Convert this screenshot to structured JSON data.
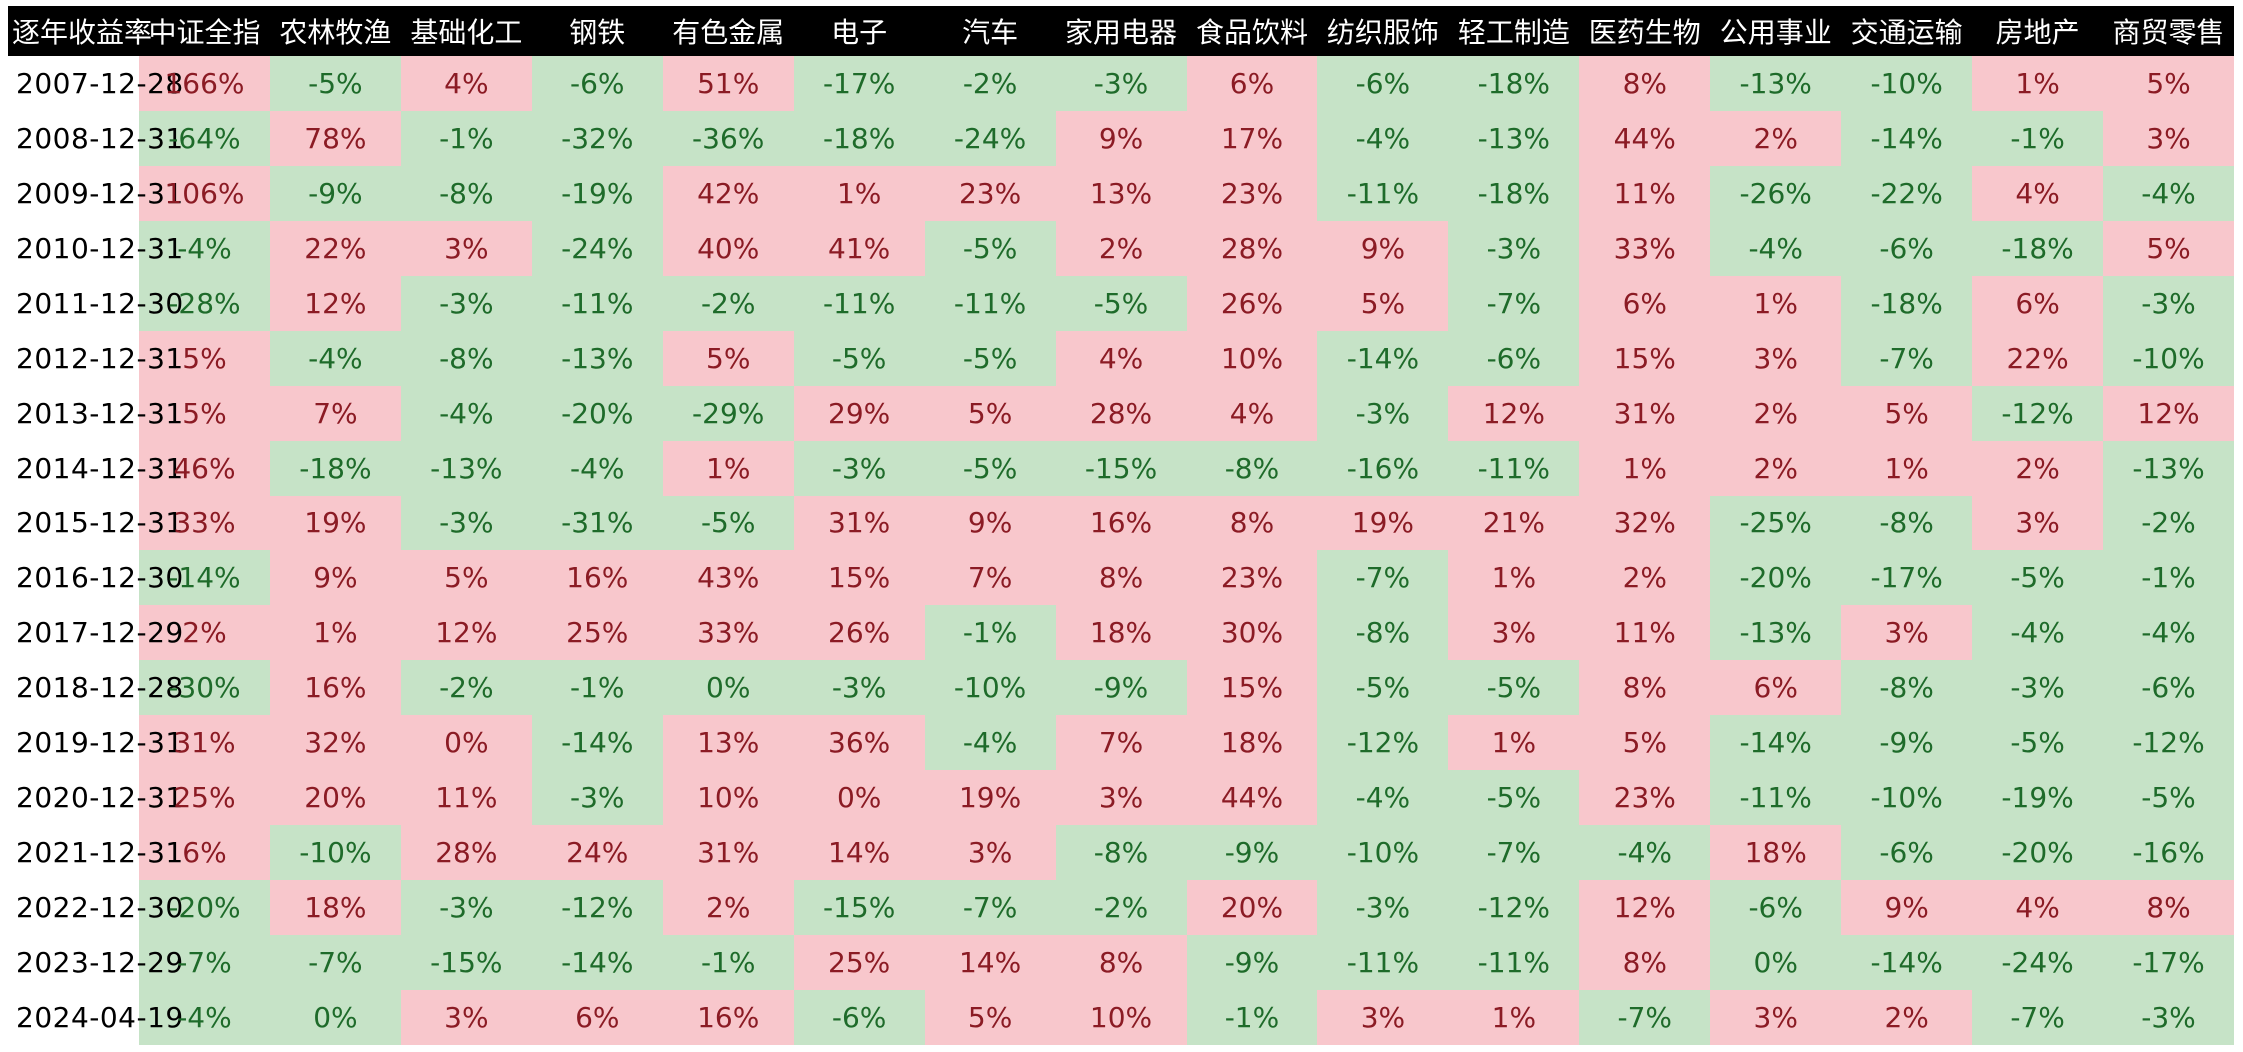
{
  "chart_data": {
    "type": "table",
    "corner_label": "逐年收益率",
    "columns": [
      "中证全指",
      "农林牧渔",
      "基础化工",
      "钢铁",
      "有色金属",
      "电子",
      "汽车",
      "家用电器",
      "食品饮料",
      "纺织服饰",
      "轻工制造",
      "医药生物",
      "公用事业",
      "交通运输",
      "房地产",
      "商贸零售"
    ],
    "rows": [
      {
        "date": "2007-12-28",
        "values": [
          166,
          -5,
          4,
          -6,
          51,
          -17,
          -2,
          -3,
          6,
          -6,
          -18,
          8,
          -13,
          -10,
          1,
          5
        ]
      },
      {
        "date": "2008-12-31",
        "values": [
          -64,
          78,
          -1,
          -32,
          -36,
          -18,
          -24,
          9,
          17,
          -4,
          -13,
          44,
          2,
          -14,
          -1,
          3
        ]
      },
      {
        "date": "2009-12-31",
        "values": [
          106,
          -9,
          -8,
          -19,
          42,
          1,
          23,
          13,
          23,
          -11,
          -18,
          11,
          -26,
          -22,
          4,
          -4
        ]
      },
      {
        "date": "2010-12-31",
        "values": [
          -4,
          22,
          3,
          -24,
          40,
          41,
          -5,
          2,
          28,
          9,
          -3,
          33,
          -4,
          -6,
          -18,
          5
        ]
      },
      {
        "date": "2011-12-30",
        "values": [
          -28,
          12,
          -3,
          -11,
          -2,
          -11,
          -11,
          -5,
          26,
          5,
          -7,
          6,
          1,
          -18,
          6,
          -3
        ]
      },
      {
        "date": "2012-12-31",
        "values": [
          5,
          -4,
          -8,
          -13,
          5,
          -5,
          -5,
          4,
          10,
          -14,
          -6,
          15,
          3,
          -7,
          22,
          -10
        ]
      },
      {
        "date": "2013-12-31",
        "values": [
          5,
          7,
          -4,
          -20,
          -29,
          29,
          5,
          28,
          4,
          -3,
          12,
          31,
          2,
          5,
          -12,
          12
        ]
      },
      {
        "date": "2014-12-31",
        "values": [
          46,
          -18,
          -13,
          -4,
          1,
          -3,
          -5,
          -15,
          -8,
          -16,
          -11,
          1,
          2,
          1,
          2,
          -13
        ]
      },
      {
        "date": "2015-12-31",
        "values": [
          33,
          19,
          -3,
          -31,
          -5,
          31,
          9,
          16,
          8,
          19,
          21,
          32,
          -25,
          -8,
          3,
          -2
        ]
      },
      {
        "date": "2016-12-30",
        "values": [
          -14,
          9,
          5,
          16,
          43,
          15,
          7,
          8,
          23,
          -7,
          1,
          2,
          -20,
          -17,
          -5,
          -1
        ]
      },
      {
        "date": "2017-12-29",
        "values": [
          2,
          1,
          12,
          25,
          33,
          26,
          -1,
          18,
          30,
          -8,
          3,
          11,
          -13,
          3,
          -4,
          -4
        ]
      },
      {
        "date": "2018-12-28",
        "values": [
          -30,
          16,
          -2,
          -1,
          0,
          -3,
          -10,
          -9,
          15,
          -5,
          -5,
          8,
          6,
          -8,
          -3,
          -6
        ]
      },
      {
        "date": "2019-12-31",
        "values": [
          31,
          32,
          0,
          -14,
          13,
          36,
          -4,
          7,
          18,
          -12,
          1,
          5,
          -14,
          -9,
          -5,
          -12
        ]
      },
      {
        "date": "2020-12-31",
        "values": [
          25,
          20,
          11,
          -3,
          10,
          0,
          19,
          3,
          44,
          -4,
          -5,
          23,
          -11,
          -10,
          -19,
          -5
        ]
      },
      {
        "date": "2021-12-31",
        "values": [
          6,
          -10,
          28,
          24,
          31,
          14,
          3,
          -8,
          -9,
          -10,
          -7,
          -4,
          18,
          -6,
          -20,
          -16
        ]
      },
      {
        "date": "2022-12-30",
        "values": [
          -20,
          18,
          -3,
          -12,
          2,
          -15,
          -7,
          -2,
          20,
          -3,
          -12,
          12,
          -6,
          9,
          4,
          8
        ]
      },
      {
        "date": "2023-12-29",
        "values": [
          -7,
          -7,
          -15,
          -14,
          -1,
          25,
          14,
          8,
          -9,
          -11,
          -11,
          8,
          0,
          -14,
          -24,
          -17
        ]
      },
      {
        "date": "2024-04-19",
        "values": [
          -4,
          0,
          3,
          6,
          16,
          -6,
          5,
          10,
          -1,
          3,
          1,
          -7,
          3,
          2,
          -7,
          -3
        ]
      }
    ],
    "unit": "%",
    "positive_cells": [
      [
        0,
        2,
        4,
        8,
        11,
        14,
        15
      ],
      [
        1,
        7,
        8,
        11,
        12,
        15
      ],
      [
        0,
        4,
        5,
        6,
        7,
        8,
        11,
        14
      ],
      [
        1,
        2,
        4,
        5,
        7,
        8,
        9,
        11,
        15
      ],
      [
        1,
        8,
        9,
        11,
        12,
        14
      ],
      [
        0,
        4,
        7,
        8,
        11,
        12,
        14
      ],
      [
        0,
        1,
        5,
        6,
        7,
        8,
        10,
        11,
        12,
        13,
        15
      ],
      [
        0,
        4,
        11,
        12,
        13,
        14
      ],
      [
        0,
        1,
        5,
        6,
        7,
        8,
        9,
        10,
        11,
        14
      ],
      [
        1,
        2,
        3,
        4,
        5,
        6,
        7,
        8,
        10,
        11
      ],
      [
        0,
        1,
        2,
        3,
        4,
        5,
        7,
        8,
        10,
        11,
        13
      ],
      [
        1,
        8,
        11,
        12
      ],
      [
        0,
        1,
        2,
        4,
        5,
        7,
        8,
        10,
        11
      ],
      [
        0,
        1,
        2,
        4,
        5,
        6,
        7,
        8,
        11
      ],
      [
        0,
        2,
        3,
        4,
        5,
        6,
        12
      ],
      [
        1,
        4,
        8,
        11,
        13,
        14,
        15
      ],
      [
        5,
        6,
        7,
        11
      ],
      [
        2,
        3,
        4,
        6,
        7,
        9,
        10,
        12,
        13
      ]
    ],
    "colors": {
      "positive_bg": "#f8c7cc",
      "positive_text": "#8b1b24",
      "negative_bg": "#c6e3c7",
      "negative_text": "#1e6b2a",
      "header_bg": "#000000",
      "header_text": "#ffffff"
    }
  }
}
